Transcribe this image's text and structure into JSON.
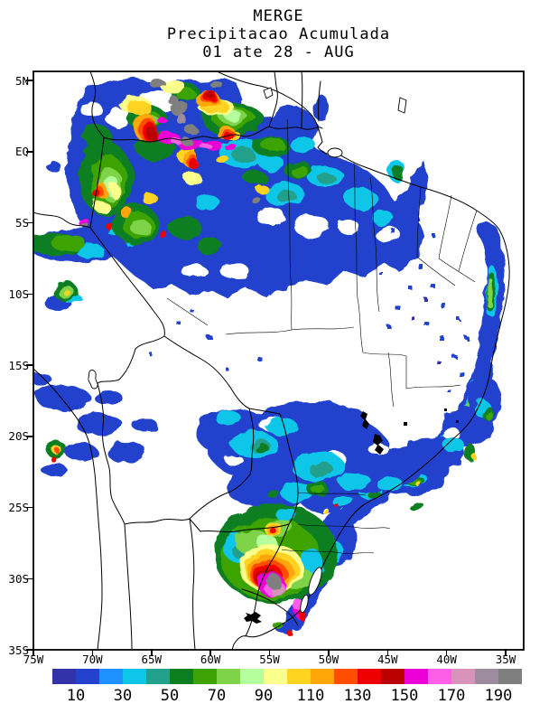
{
  "title": {
    "line1": "MERGE",
    "line2": "Precipitacao Acumulada",
    "line3": "01 ate 28 - AUG"
  },
  "axes": {
    "lat_labels": [
      "5N",
      "EQ",
      "5S",
      "10S",
      "15S",
      "20S",
      "25S",
      "30S",
      "35S"
    ],
    "lon_labels": [
      "75W",
      "70W",
      "65W",
      "60W",
      "55W",
      "50W",
      "45W",
      "40W",
      "35W"
    ]
  },
  "colorbar": {
    "tick_labels": [
      "10",
      "30",
      "50",
      "70",
      "90",
      "110",
      "130",
      "150",
      "170",
      "190"
    ],
    "colors": [
      "#3432A8",
      "#2343CE",
      "#1F90FF",
      "#0DC6E8",
      "#23A08C",
      "#0C7E20",
      "#3EA305",
      "#7ED348",
      "#B5FF9C",
      "#FBFF8B",
      "#FFD320",
      "#FFA608",
      "#FF4E00",
      "#EF0000",
      "#BB0000",
      "#EC00D8",
      "#FF5FE6",
      "#D893BB",
      "#9D8C9E",
      "#7F7F7F"
    ]
  },
  "chart_data": {
    "type": "heatmap",
    "title": "MERGE",
    "subtitle": "Precipitacao Acumulada",
    "period": "01 ate 28 - AUG",
    "lat_ticks": [
      "5N",
      "EQ",
      "5S",
      "10S",
      "15S",
      "20S",
      "25S",
      "30S",
      "35S"
    ],
    "lon_ticks": [
      "75W",
      "70W",
      "65W",
      "60W",
      "55W",
      "50W",
      "45W",
      "40W",
      "35W"
    ],
    "colorbar_tick_values": [
      10,
      30,
      50,
      70,
      90,
      110,
      130,
      150,
      170,
      190
    ],
    "legend_position": "bottom",
    "background": "#ffffff"
  }
}
